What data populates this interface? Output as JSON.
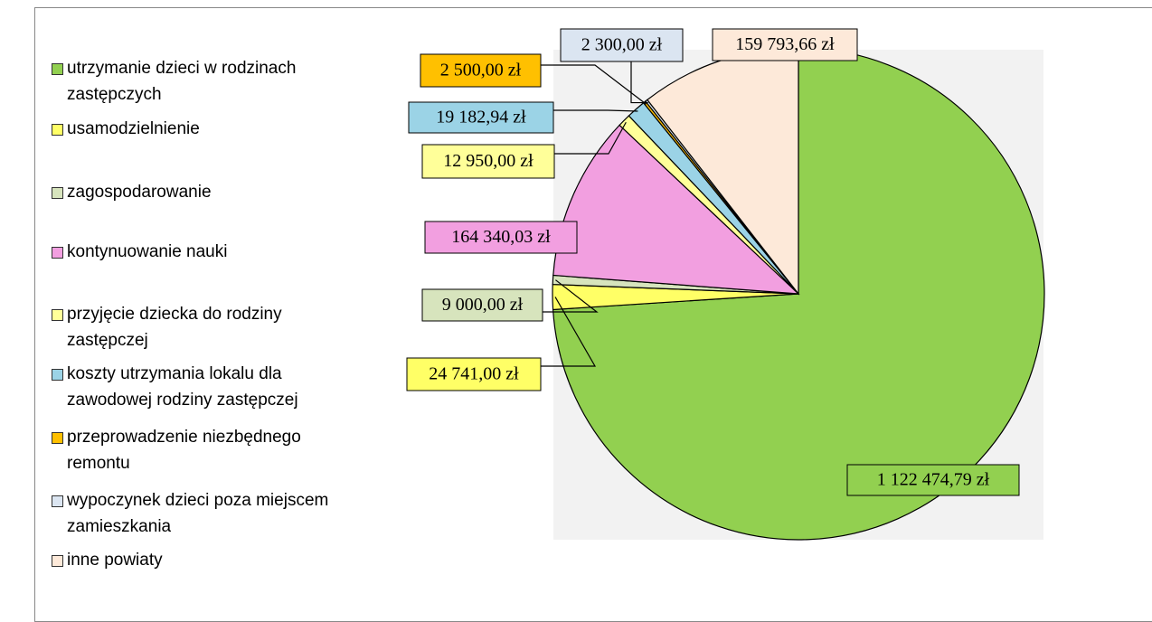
{
  "chart_data": {
    "type": "pie",
    "categories": [
      "utrzymanie dzieci w rodzinach zastępczych",
      "usamodzielnienie",
      "zagospodarowanie",
      "kontynuowanie nauki",
      "przyjęcie dziecka do rodziny zastępczej",
      "koszty utrzymania lokalu dla zawodowej rodziny zastępczej",
      "przeprowadzenie niezbędnego remontu",
      "wypoczynek dzieci poza miejscem zamieszkania",
      "inne powiaty"
    ],
    "values": [
      1122474.79,
      24741,
      9000,
      164340.03,
      12950,
      19182.94,
      2500,
      2300,
      159793.66
    ],
    "value_labels": [
      "1 122 474,79 zł",
      "24 741,00 zł",
      "9 000,00 zł",
      "164 340,03 zł",
      "12 950,00 zł",
      "19 182,94 zł",
      "2 500,00 zł",
      "2 300,00 zł",
      "159 793,66 zł"
    ],
    "colors": [
      "#92d050",
      "#ffff66",
      "#d7e4bd",
      "#f29fe0",
      "#ffff99",
      "#9bd3e6",
      "#ffc000",
      "#dbe5f1",
      "#fde9d9"
    ],
    "legend": "left"
  }
}
